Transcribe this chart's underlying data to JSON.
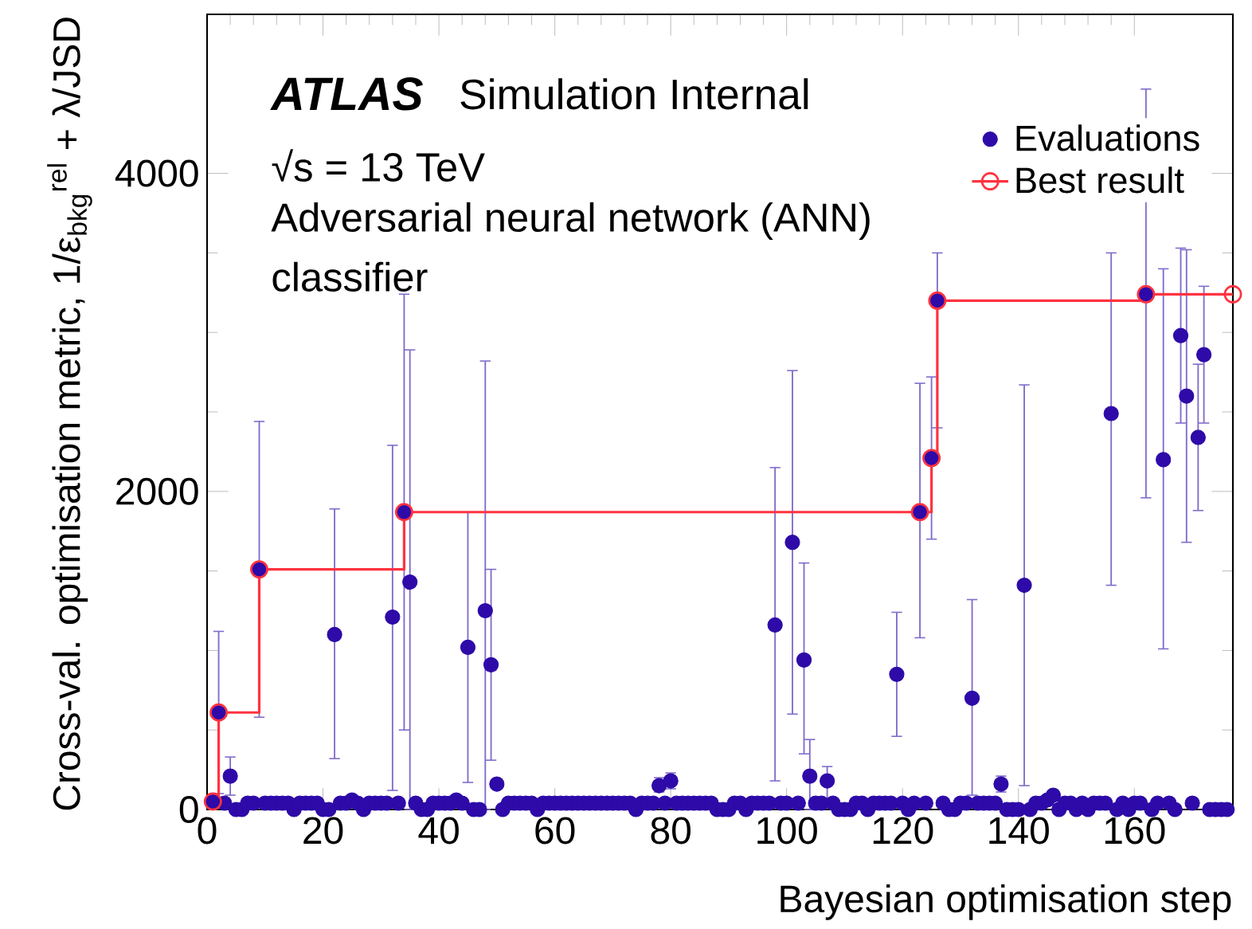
{
  "chart_data": {
    "type": "scatter",
    "xlabel": "Bayesian optimisation step",
    "ylabel": "Cross-val. optimisation metric, 1/ε$_{bkg}$$^{rel}$ + λ/JSD",
    "annotations": [
      "ATLAS",
      "Simulation Internal",
      "√s = 13 TeV",
      "Adversarial neural network (ANN)",
      "classifier"
    ],
    "xlim": [
      0,
      177
    ],
    "xticks": [
      0,
      20,
      40,
      60,
      80,
      100,
      120,
      140,
      160
    ],
    "ylim": [
      0,
      5000
    ],
    "yticks": [
      0,
      2000,
      4000
    ],
    "legend": "top right",
    "grid": false,
    "series": [
      {
        "name": "Evaluations",
        "color": "#2e0aa8",
        "marker": "circle",
        "x": [
          1,
          2,
          3,
          4,
          5,
          6,
          7,
          8,
          9,
          10,
          11,
          12,
          13,
          14,
          15,
          16,
          17,
          18,
          19,
          20,
          21,
          22,
          23,
          24,
          25,
          26,
          27,
          28,
          29,
          30,
          31,
          32,
          33,
          34,
          35,
          36,
          37,
          38,
          39,
          40,
          41,
          42,
          43,
          44,
          45,
          46,
          47,
          48,
          49,
          50,
          51,
          52,
          53,
          54,
          55,
          56,
          57,
          58,
          59,
          60,
          61,
          62,
          63,
          64,
          65,
          66,
          67,
          68,
          69,
          70,
          71,
          72,
          73,
          74,
          75,
          76,
          77,
          78,
          79,
          80,
          81,
          82,
          83,
          84,
          85,
          86,
          87,
          88,
          89,
          90,
          91,
          92,
          93,
          94,
          95,
          96,
          97,
          98,
          99,
          100,
          101,
          102,
          103,
          104,
          105,
          106,
          107,
          108,
          109,
          110,
          111,
          112,
          113,
          114,
          115,
          116,
          117,
          118,
          119,
          120,
          121,
          122,
          123,
          124,
          125,
          126,
          127,
          128,
          129,
          130,
          131,
          132,
          133,
          134,
          135,
          136,
          137,
          138,
          139,
          140,
          141,
          142,
          143,
          144,
          145,
          146,
          147,
          148,
          149,
          150,
          151,
          152,
          153,
          154,
          155,
          156,
          157,
          158,
          159,
          160,
          161,
          162,
          163,
          164,
          165,
          166,
          167,
          168,
          169,
          170,
          171,
          172,
          173,
          174,
          175,
          176
        ],
        "values": [
          50,
          610,
          40,
          210,
          0,
          0,
          40,
          40,
          1510,
          40,
          40,
          40,
          40,
          40,
          0,
          40,
          40,
          40,
          40,
          0,
          0,
          1100,
          40,
          40,
          60,
          40,
          0,
          40,
          40,
          40,
          40,
          1210,
          40,
          1870,
          1430,
          40,
          0,
          0,
          40,
          40,
          40,
          40,
          60,
          40,
          1020,
          0,
          0,
          1250,
          910,
          160,
          0,
          40,
          40,
          40,
          40,
          40,
          0,
          40,
          40,
          40,
          40,
          40,
          40,
          40,
          40,
          40,
          40,
          40,
          40,
          40,
          40,
          40,
          40,
          0,
          40,
          40,
          40,
          150,
          40,
          180,
          40,
          40,
          40,
          40,
          40,
          40,
          40,
          0,
          0,
          0,
          40,
          40,
          0,
          40,
          40,
          40,
          40,
          1160,
          40,
          40,
          1680,
          40,
          940,
          210,
          40,
          40,
          180,
          40,
          0,
          0,
          0,
          40,
          40,
          0,
          40,
          40,
          40,
          40,
          850,
          40,
          0,
          40,
          1870,
          40,
          2210,
          3200,
          40,
          0,
          0,
          40,
          40,
          700,
          40,
          40,
          40,
          40,
          160,
          0,
          0,
          0,
          1410,
          0,
          40,
          40,
          60,
          90,
          0,
          40,
          40,
          0,
          40,
          0,
          40,
          40,
          40,
          2490,
          0,
          40,
          0,
          40,
          40,
          3240,
          0,
          40,
          2200,
          40,
          0,
          2980,
          2600,
          40,
          2340,
          2860,
          0,
          0,
          0,
          0
        ],
        "errors": [
          null,
          [
            100,
            1120
          ],
          null,
          [
            90,
            330
          ],
          null,
          null,
          null,
          null,
          [
            580,
            2440
          ],
          null,
          null,
          null,
          null,
          null,
          null,
          null,
          null,
          null,
          null,
          null,
          null,
          [
            320,
            1890
          ],
          null,
          null,
          null,
          null,
          null,
          null,
          null,
          null,
          null,
          [
            120,
            2290
          ],
          null,
          [
            500,
            3240
          ],
          [
            0,
            2890
          ],
          null,
          null,
          null,
          null,
          null,
          null,
          null,
          null,
          null,
          [
            170,
            1870
          ],
          null,
          null,
          [
            0,
            2820
          ],
          [
            310,
            1510
          ],
          null,
          null,
          null,
          null,
          null,
          null,
          null,
          null,
          null,
          null,
          null,
          null,
          null,
          null,
          null,
          null,
          null,
          null,
          null,
          null,
          null,
          null,
          null,
          null,
          null,
          null,
          null,
          null,
          [
            110,
            200
          ],
          null,
          [
            130,
            230
          ],
          null,
          null,
          null,
          null,
          null,
          null,
          null,
          null,
          null,
          null,
          null,
          null,
          null,
          null,
          null,
          null,
          null,
          [
            180,
            2150
          ],
          null,
          null,
          [
            600,
            2760
          ],
          null,
          [
            350,
            1550
          ],
          [
            0,
            440
          ],
          null,
          null,
          [
            60,
            270
          ],
          null,
          null,
          null,
          null,
          null,
          null,
          null,
          null,
          null,
          null,
          null,
          [
            460,
            1240
          ],
          null,
          null,
          null,
          [
            1080,
            2680
          ],
          null,
          [
            1700,
            2720
          ],
          [
            2400,
            3500
          ],
          null,
          null,
          null,
          null,
          null,
          [
            90,
            1320
          ],
          null,
          null,
          null,
          null,
          [
            110,
            210
          ],
          null,
          null,
          null,
          [
            150,
            2670
          ],
          null,
          null,
          null,
          null,
          null,
          null,
          null,
          null,
          null,
          null,
          null,
          null,
          null,
          null,
          [
            1410,
            3500
          ],
          null,
          null,
          null,
          null,
          null,
          [
            1960,
            4530
          ],
          null,
          null,
          [
            1010,
            3400
          ],
          null,
          null,
          [
            2430,
            3530
          ],
          [
            1680,
            3520
          ],
          null,
          [
            1880,
            2800
          ],
          [
            2430,
            3290
          ],
          null,
          null,
          null,
          null
        ]
      },
      {
        "name": "Best result",
        "type": "step",
        "color": "#ff3340",
        "marker": "circle",
        "x": [
          1,
          2,
          9,
          34,
          123,
          125,
          126,
          162,
          177
        ],
        "values": [
          50,
          610,
          1510,
          1870,
          1870,
          2210,
          3200,
          3240,
          3240
        ]
      }
    ]
  }
}
